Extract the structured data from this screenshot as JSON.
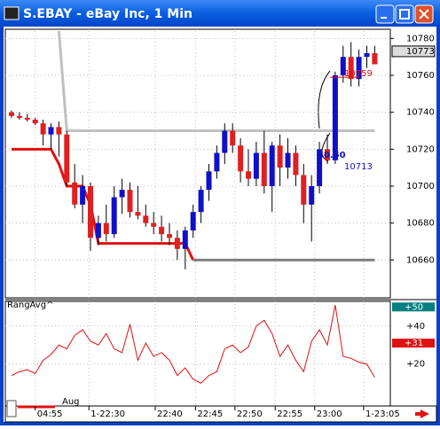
{
  "window_title": "S.EBAY - eBay Inc, 1 Min",
  "chart_data": {
    "type": "candlestick",
    "up_color": "#1010c8",
    "down_color": "#e02020",
    "open": [
      10740,
      10738,
      10737,
      10736,
      10734,
      10728,
      10732,
      10728,
      10702,
      10690,
      10700,
      10672,
      10680,
      10674,
      10694,
      10698,
      10686,
      10684,
      10680,
      10678,
      10674,
      10672,
      10666,
      10676,
      10686,
      10698,
      10708,
      10718,
      10730,
      10722,
      10708,
      10704,
      10718,
      10700,
      10722,
      10710,
      10718,
      10706,
      10690,
      10700,
      10720,
      10714,
      10760,
      10770,
      10758,
      10770,
      10772
    ],
    "high": [
      10741,
      10740,
      10739,
      10737,
      10736,
      10734,
      10735,
      10730,
      10712,
      10706,
      10702,
      10684,
      10690,
      10700,
      10704,
      10702,
      10700,
      10690,
      10686,
      10684,
      10680,
      10676,
      10678,
      10690,
      10700,
      10712,
      10722,
      10734,
      10734,
      10726,
      10720,
      10724,
      10730,
      10724,
      10728,
      10726,
      10722,
      10712,
      10706,
      10724,
      10728,
      10762,
      10776,
      10778,
      10774,
      10776,
      10776
    ],
    "low": [
      10737,
      10736,
      10735,
      10733,
      10722,
      10720,
      10716,
      10700,
      10688,
      10680,
      10665,
      10668,
      10670,
      10672,
      10685,
      10683,
      10682,
      10678,
      10674,
      10670,
      10668,
      10660,
      10655,
      10672,
      10680,
      10692,
      10704,
      10712,
      10718,
      10702,
      10700,
      10700,
      10696,
      10686,
      10700,
      10704,
      10700,
      10680,
      10670,
      10696,
      10712,
      10712,
      10756,
      10754,
      10754,
      10764,
      10766
    ],
    "close": [
      10738,
      10737,
      10736,
      10734,
      10728,
      10732,
      10728,
      10702,
      10690,
      10700,
      10672,
      10680,
      10674,
      10694,
      10698,
      10686,
      10684,
      10680,
      10678,
      10674,
      10672,
      10666,
      10676,
      10686,
      10698,
      10708,
      10718,
      10730,
      10722,
      10708,
      10704,
      10718,
      10700,
      10722,
      10710,
      10718,
      10706,
      10690,
      10700,
      10720,
      10714,
      10760,
      10770,
      10758,
      10770,
      10772,
      10766
    ],
    "ylim": [
      10640,
      10784
    ],
    "yticks": [
      10660,
      10680,
      10700,
      10720,
      10740,
      10760,
      10780
    ],
    "last_price": 10773,
    "xticks": [
      {
        "value": 3,
        "label": "04:55"
      },
      {
        "value": 9.8,
        "label": "1-22:30"
      },
      {
        "value": 18.2,
        "label": "22:40"
      },
      {
        "value": 23.3,
        "label": "22:45"
      },
      {
        "value": 28.3,
        "label": "22:50"
      },
      {
        "value": 33.4,
        "label": "22:55"
      },
      {
        "value": 38.4,
        "label": "23:00"
      },
      {
        "value": 44.6,
        "label": "1-23:05"
      }
    ],
    "overlays": [
      {
        "color": "#e01010",
        "values": [
          10720,
          10720,
          10720,
          10720,
          10720,
          10720,
          10712,
          10700,
          10700,
          10700,
          10690,
          10669,
          10669,
          10669,
          10669,
          10669,
          10669,
          10669,
          10669,
          10669,
          10669,
          10669,
          10669,
          10660,
          null,
          null,
          null,
          null,
          null,
          null,
          null,
          null,
          null,
          null,
          null,
          null,
          null,
          null,
          null,
          null,
          null,
          null,
          null,
          null,
          null,
          null,
          null
        ]
      },
      {
        "color": "#c0c0c0",
        "values": [
          null,
          null,
          null,
          null,
          null,
          null,
          10784,
          10730,
          10730,
          10730,
          10730,
          10730,
          10730,
          10730,
          10730,
          10730,
          10730,
          10730,
          10730,
          10730,
          10730,
          10730,
          10730,
          10730,
          10730,
          10730,
          10730,
          10730,
          10730,
          10730,
          10730,
          10730,
          10730,
          10730,
          10730,
          10730,
          10730,
          10730,
          10730,
          10730,
          10730,
          10730,
          10730,
          10730,
          10730,
          10730,
          10730
        ]
      },
      {
        "color": "#808080",
        "values": [
          null,
          null,
          null,
          null,
          null,
          null,
          null,
          null,
          null,
          null,
          null,
          null,
          null,
          null,
          null,
          null,
          null,
          null,
          null,
          null,
          null,
          null,
          null,
          10660,
          10660,
          10660,
          10660,
          10660,
          10660,
          10660,
          10660,
          10660,
          10660,
          10660,
          10660,
          10660,
          10660,
          10660,
          10660,
          10660,
          10660,
          10660,
          10660,
          10660,
          10660,
          10660,
          10660
        ]
      }
    ],
    "annotations": [
      {
        "value": 10759,
        "label": "10759"
      },
      {
        "value": 10713,
        "label": "10713"
      }
    ],
    "difference_label": "$0.50",
    "indicator": {
      "title": "RangAvg^",
      "color": "#e01010",
      "values": [
        14,
        16,
        17,
        15,
        22,
        25,
        30,
        28,
        35,
        38,
        32,
        30,
        36,
        28,
        26,
        41,
        22,
        31,
        24,
        26,
        22,
        14,
        18,
        12,
        10,
        14,
        16,
        28,
        30,
        26,
        29,
        40,
        43,
        36,
        24,
        30,
        22,
        16,
        32,
        38,
        30,
        51,
        24,
        23,
        21,
        20,
        13
      ],
      "ylim": [
        -2,
        52
      ],
      "yticks": [
        {
          "value": 20,
          "label": "+20"
        },
        {
          "value": 40,
          "label": "+40"
        }
      ],
      "level": {
        "value": 50,
        "label": "+50"
      },
      "current": {
        "value": 31,
        "label": "+31"
      }
    },
    "footer_label": "Aug"
  }
}
